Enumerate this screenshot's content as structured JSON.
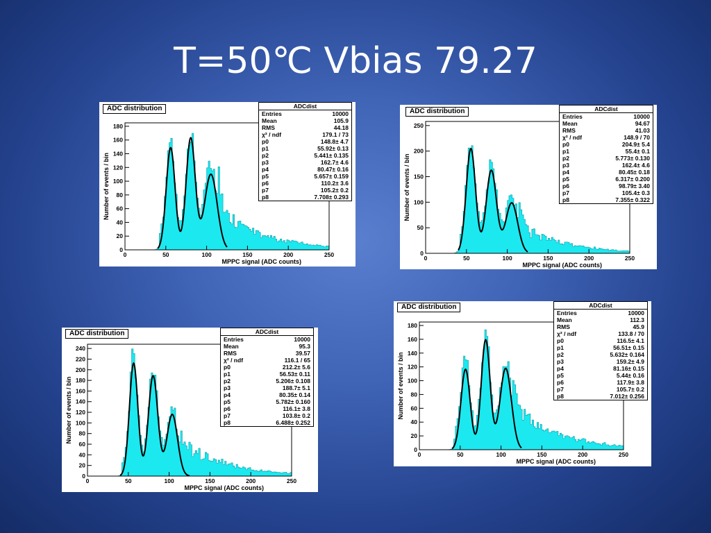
{
  "slide": {
    "title": "T=50℃ Vbias 79.27"
  },
  "chart_data": [
    {
      "type": "histogram",
      "title": "ADC distribution",
      "xlabel": "MPPC signal (ADC counts)",
      "ylabel": "Number of events / bin",
      "xlim": [
        0,
        250
      ],
      "ylim": [
        0,
        185
      ],
      "xticks": [
        0,
        50,
        100,
        150,
        200,
        250
      ],
      "yticks": [
        0,
        20,
        40,
        60,
        80,
        100,
        120,
        140,
        160,
        180
      ],
      "fit_params": {
        "p0": 148.8,
        "p1": 55.92,
        "p2": 5.441,
        "p3": 162.7,
        "p4": 80.47,
        "p5": 5.657,
        "p6": 110.2,
        "p7": 105.2,
        "p8": 7.708
      },
      "stats": {
        "name": "ADCdist",
        "rows": [
          [
            "Entries",
            "10000"
          ],
          [
            "Mean",
            "105.9"
          ],
          [
            "RMS",
            "44.18"
          ],
          [
            "χ² / ndf",
            "179.1 / 73"
          ],
          [
            "p0",
            "148.8± 4.7"
          ],
          [
            "p1",
            "55.92± 0.13"
          ],
          [
            "p2",
            "5.441± 0.135"
          ],
          [
            "p3",
            "162.7± 4.6"
          ],
          [
            "p4",
            "80.47± 0.16"
          ],
          [
            "p5",
            "5.657± 0.159"
          ],
          [
            "p6",
            "110.2± 3.6"
          ],
          [
            "p7",
            "105.2± 0.2"
          ],
          [
            "p8",
            "7.708± 0.293"
          ]
        ]
      }
    },
    {
      "type": "histogram",
      "title": "ADC distribution",
      "xlabel": "MPPC signal (ADC counts)",
      "ylabel": "Number of events / bin",
      "xlim": [
        0,
        250
      ],
      "ylim": [
        0,
        258
      ],
      "xticks": [
        0,
        50,
        100,
        150,
        200,
        250
      ],
      "yticks": [
        0,
        50,
        100,
        150,
        200,
        250
      ],
      "fit_params": {
        "p0": 204.9,
        "p1": 55.4,
        "p2": 5.773,
        "p3": 162.4,
        "p4": 80.45,
        "p5": 6.317,
        "p6": 98.79,
        "p7": 105.4,
        "p8": 7.355
      },
      "stats": {
        "name": "ADCdist",
        "rows": [
          [
            "Entries",
            "10000"
          ],
          [
            "Mean",
            "94.67"
          ],
          [
            "RMS",
            "41.03"
          ],
          [
            "χ² / ndf",
            "148.9 / 70"
          ],
          [
            "p0",
            "204.9± 5.4"
          ],
          [
            "p1",
            "55.4± 0.1"
          ],
          [
            "p2",
            "5.773± 0.130"
          ],
          [
            "p3",
            "162.4± 4.6"
          ],
          [
            "p4",
            "80.45± 0.18"
          ],
          [
            "p5",
            "6.317± 0.200"
          ],
          [
            "p6",
            "98.79± 3.40"
          ],
          [
            "p7",
            "105.4± 0.3"
          ],
          [
            "p8",
            "7.355± 0.322"
          ]
        ]
      }
    },
    {
      "type": "histogram",
      "title": "ADC distribution",
      "xlabel": "MPPC signal (ADC counts)",
      "ylabel": "Number of events / bin",
      "xlim": [
        0,
        250
      ],
      "ylim": [
        0,
        248
      ],
      "xticks": [
        0,
        50,
        100,
        150,
        200,
        250
      ],
      "yticks": [
        0,
        20,
        40,
        60,
        80,
        100,
        120,
        140,
        160,
        180,
        200,
        220,
        240
      ],
      "fit_params": {
        "p0": 212.2,
        "p1": 56.53,
        "p2": 5.206,
        "p3": 188.7,
        "p4": 80.35,
        "p5": 5.782,
        "p6": 116.1,
        "p7": 103.8,
        "p8": 6.488
      },
      "stats": {
        "name": "ADCdist",
        "rows": [
          [
            "Entries",
            "10000"
          ],
          [
            "Mean",
            "95.3"
          ],
          [
            "RMS",
            "39.57"
          ],
          [
            "χ² / ndf",
            "116.1 / 65"
          ],
          [
            "p0",
            "212.2± 5.6"
          ],
          [
            "p1",
            "56.53± 0.11"
          ],
          [
            "p2",
            "5.206± 0.108"
          ],
          [
            "p3",
            "188.7± 5.1"
          ],
          [
            "p4",
            "80.35± 0.14"
          ],
          [
            "p5",
            "5.782± 0.160"
          ],
          [
            "p6",
            "116.1± 3.8"
          ],
          [
            "p7",
            "103.8± 0.2"
          ],
          [
            "p8",
            "6.488± 0.252"
          ]
        ]
      }
    },
    {
      "type": "histogram",
      "title": "ADC distribution",
      "xlabel": "MPPC signal (ADC counts)",
      "ylabel": "Number of events / bin",
      "xlim": [
        0,
        250
      ],
      "ylim": [
        0,
        185
      ],
      "xticks": [
        0,
        50,
        100,
        150,
        200,
        250
      ],
      "yticks": [
        0,
        20,
        40,
        60,
        80,
        100,
        120,
        140,
        160,
        180
      ],
      "fit_params": {
        "p0": 116.5,
        "p1": 56.51,
        "p2": 5.632,
        "p3": 159.2,
        "p4": 81.16,
        "p5": 5.44,
        "p6": 117.9,
        "p7": 105.7,
        "p8": 7.012
      },
      "stats": {
        "name": "ADCdist",
        "rows": [
          [
            "Entries",
            "10000"
          ],
          [
            "Mean",
            "112.3"
          ],
          [
            "RMS",
            "45.9"
          ],
          [
            "χ² / ndf",
            "133.8 / 70"
          ],
          [
            "p0",
            "116.5± 4.1"
          ],
          [
            "p1",
            "56.51± 0.15"
          ],
          [
            "p2",
            "5.632± 0.164"
          ],
          [
            "p3",
            "159.2± 4.9"
          ],
          [
            "p4",
            "81.16± 0.15"
          ],
          [
            "p5",
            "5.44± 0.16"
          ],
          [
            "p6",
            "117.9± 3.8"
          ],
          [
            "p7",
            "105.7± 0.2"
          ],
          [
            "p8",
            "7.012± 0.256"
          ]
        ]
      }
    }
  ]
}
